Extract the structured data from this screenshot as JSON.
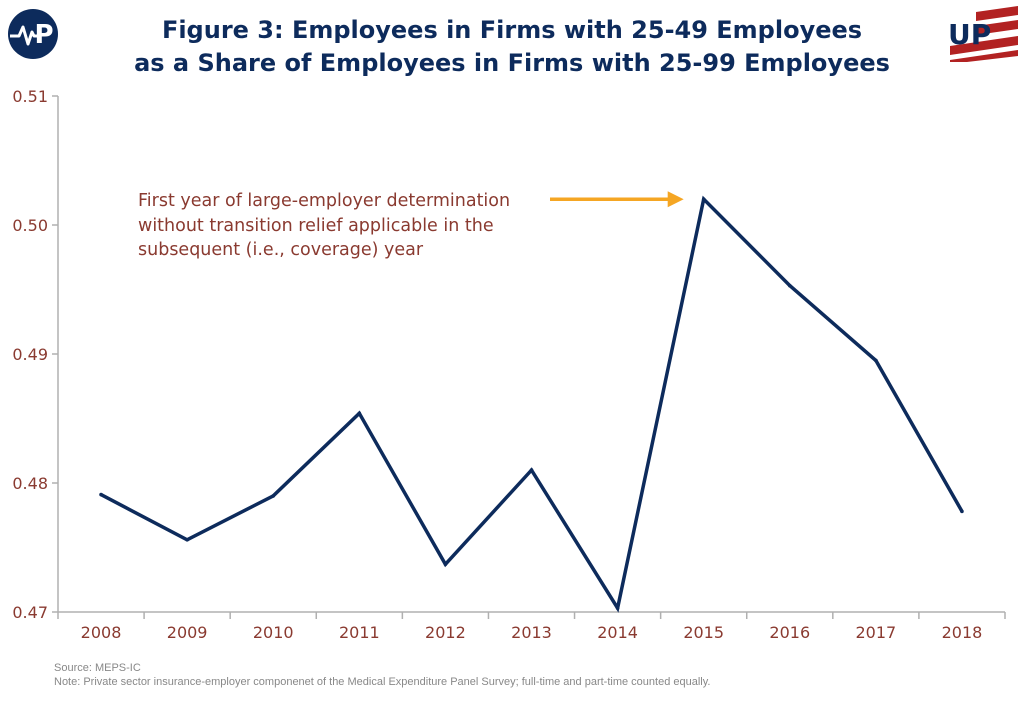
{
  "title": {
    "line1": "Figure 3:  Employees in Firms with 25-49 Employees",
    "line2": "as a Share of Employees in Firms with 25-99 Employees"
  },
  "logos": {
    "left_icon": "heartbeat-p-logo-icon",
    "left_text": "P",
    "right_icon": "up-flag-logo-icon",
    "right_text": "UP"
  },
  "colors": {
    "title": "#0d2b5c",
    "line": "#0d2b5c",
    "tick_labels": "#8a3a30",
    "annotation_text": "#8a3a30",
    "arrow": "#f5a623",
    "axis": "#b0b0b0",
    "logo_red": "#b22222"
  },
  "chart_data": {
    "type": "line",
    "x": [
      "2008",
      "2009",
      "2010",
      "2011",
      "2012",
      "2013",
      "2014",
      "2015",
      "2016",
      "2017",
      "2018"
    ],
    "series": [
      {
        "values": [
          0.4791,
          0.4756,
          0.479,
          0.4854,
          0.4737,
          0.481,
          0.4703,
          0.502,
          0.4953,
          0.4895,
          0.4778
        ]
      }
    ],
    "yticks": [
      "0.47",
      "0.48",
      "0.49",
      "0.50",
      "0.51"
    ],
    "ylim": [
      0.47,
      0.51
    ],
    "grid": false,
    "legend": "none",
    "annotation": {
      "lines": [
        "First year of large-employer determination",
        "without transition relief applicable in the",
        "subsequent (i.e., coverage) year"
      ],
      "points_to": "2015"
    }
  },
  "footer": {
    "source": "Source: MEPS-IC",
    "note": "Note: Private sector insurance-employer componenet of the Medical Expenditure Panel Survey; full-time and part-time counted equally."
  }
}
